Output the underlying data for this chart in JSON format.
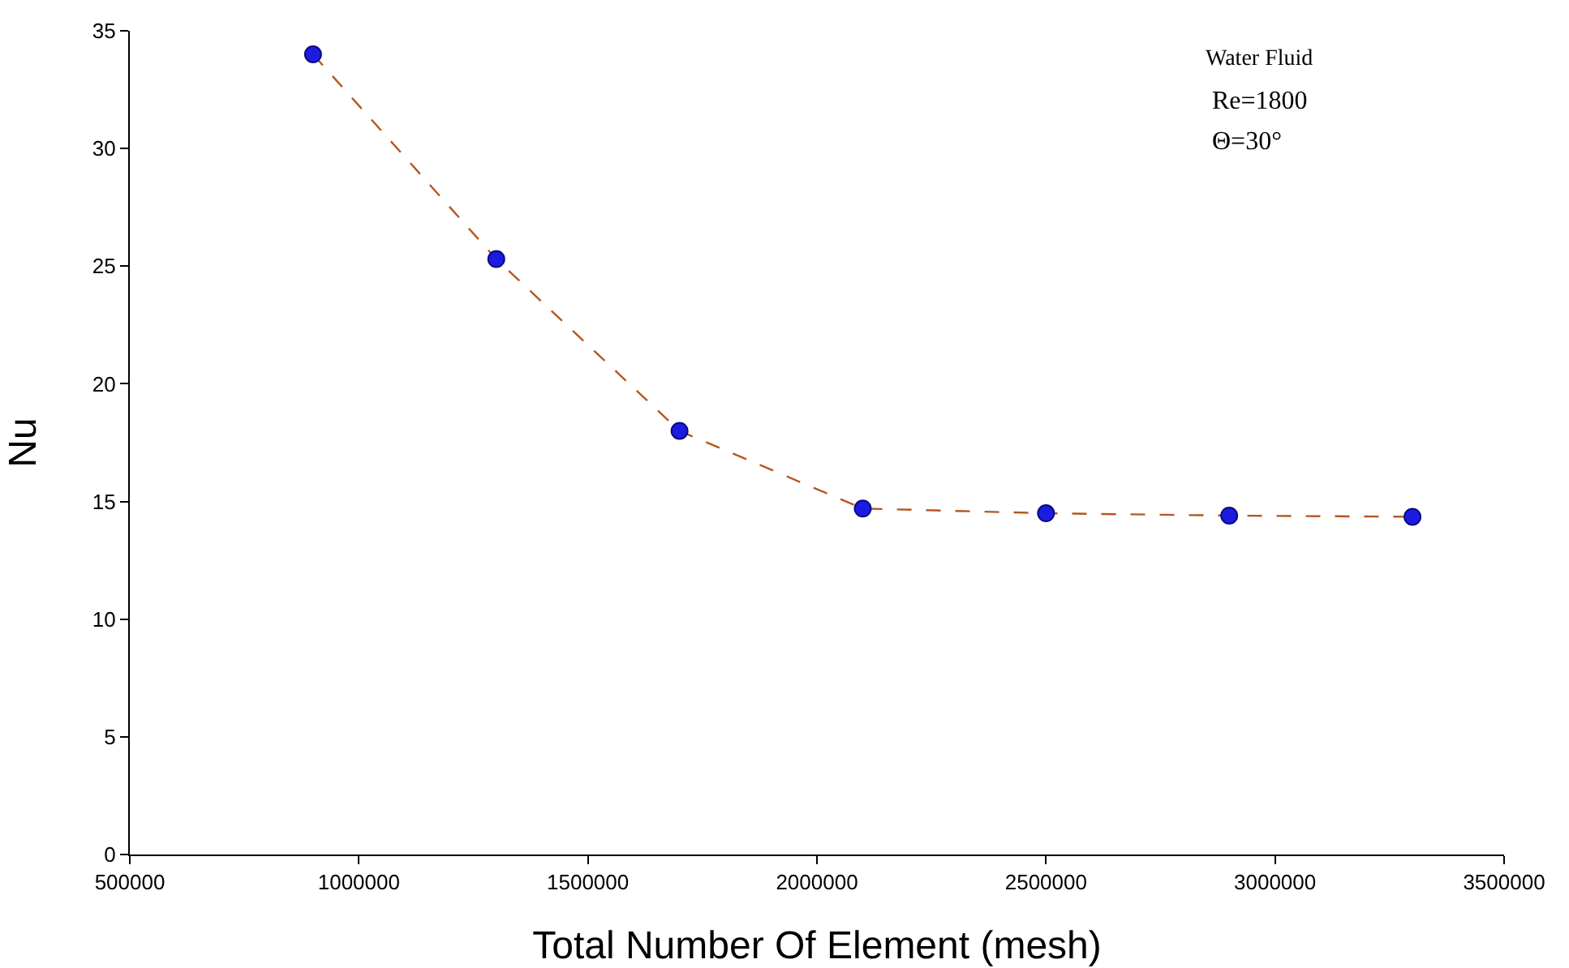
{
  "chart_data": {
    "type": "line",
    "xlabel": "Total Number Of Element (mesh)",
    "ylabel": "Nu",
    "x": [
      900000,
      1300000,
      1700000,
      2100000,
      2500000,
      2900000,
      3300000
    ],
    "series": [
      {
        "color": "#1c1ce0",
        "values": [
          34,
          25.3,
          18,
          14.7,
          14.5,
          14.4,
          14.35
        ]
      }
    ],
    "xlim": [
      500000,
      3500000
    ],
    "xticks": [
      500000,
      1000000,
      1500000,
      2000000,
      2500000,
      3000000,
      3500000
    ],
    "ylim": [
      0,
      35
    ],
    "yticks": [
      0,
      5,
      10,
      15,
      20,
      25,
      30,
      35
    ],
    "annotations": [
      "Water Fluid",
      "Re=1800",
      "Θ=30°"
    ],
    "grid": false,
    "marker": "circle",
    "line_style": "dashed"
  }
}
